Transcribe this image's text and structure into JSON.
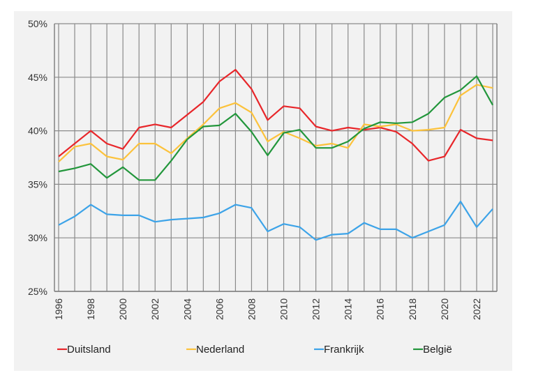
{
  "chart_data": {
    "type": "line",
    "title": "",
    "xlabel": "",
    "ylabel": "",
    "x": [
      1996,
      1997,
      1998,
      1999,
      2000,
      2001,
      2002,
      2003,
      2004,
      2005,
      2006,
      2007,
      2008,
      2009,
      2010,
      2011,
      2012,
      2013,
      2014,
      2015,
      2016,
      2017,
      2018,
      2019,
      2020,
      2021,
      2022,
      2023
    ],
    "x_tick_labels": [
      "1996",
      "1998",
      "2000",
      "2002",
      "2004",
      "2006",
      "2008",
      "2010",
      "2012",
      "2014",
      "2016",
      "2018",
      "2020",
      "2022"
    ],
    "ylim": [
      25,
      50
    ],
    "y_tick_labels": [
      "50%",
      "45%",
      "40%",
      "35%",
      "30%",
      "25%"
    ],
    "y_ticks": [
      50,
      45,
      40,
      35,
      30,
      25
    ],
    "grid": true,
    "legend_position": "bottom",
    "series": [
      {
        "name": "Duitsland",
        "color": "#e8262a",
        "values": [
          37.6,
          38.8,
          40.0,
          38.8,
          38.3,
          40.3,
          40.6,
          40.3,
          41.5,
          42.7,
          44.6,
          45.7,
          43.9,
          41.0,
          42.3,
          42.1,
          40.4,
          40.0,
          40.3,
          40.1,
          40.3,
          39.9,
          38.8,
          37.2,
          37.6,
          40.1,
          39.3,
          39.1
        ]
      },
      {
        "name": "Nederland",
        "color": "#fcc23b",
        "values": [
          37.1,
          38.5,
          38.8,
          37.6,
          37.3,
          38.8,
          38.8,
          37.9,
          39.3,
          40.6,
          42.1,
          42.6,
          41.7,
          39.0,
          39.9,
          39.3,
          38.6,
          38.8,
          38.4,
          40.6,
          40.4,
          40.6,
          40.0,
          40.1,
          40.3,
          43.3,
          44.3,
          44.0
        ]
      },
      {
        "name": "Frankrijk",
        "color": "#3ca3e8",
        "values": [
          31.2,
          32.0,
          33.1,
          32.2,
          32.1,
          32.1,
          31.5,
          31.7,
          31.8,
          31.9,
          32.3,
          33.1,
          32.8,
          30.6,
          31.3,
          31.0,
          29.8,
          30.3,
          30.4,
          31.4,
          30.8,
          30.8,
          30.0,
          30.6,
          31.2,
          33.4,
          31.0,
          32.7
        ]
      },
      {
        "name": "België",
        "color": "#22963b",
        "values": [
          36.2,
          36.5,
          36.9,
          35.6,
          36.6,
          35.4,
          35.4,
          37.2,
          39.2,
          40.4,
          40.5,
          41.6,
          39.9,
          37.7,
          39.8,
          40.1,
          38.4,
          38.4,
          39.0,
          40.2,
          40.8,
          40.7,
          40.8,
          41.6,
          43.1,
          43.8,
          45.1,
          42.4
        ]
      }
    ]
  }
}
